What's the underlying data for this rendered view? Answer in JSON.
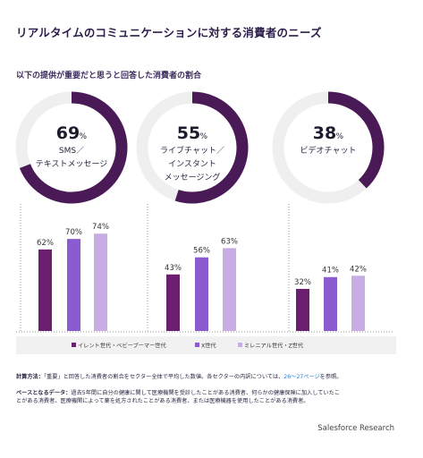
{
  "title": "リアルタイムのコミュニケーションに対する消費者のニーズ",
  "subtitle": "以下の提供が重要だと思うと回答した消費者の割合",
  "chart_data": [
    {
      "type": "pie",
      "title": "SMS／テキストメッセージ",
      "value": 69,
      "label_lines": [
        "SMS／",
        "テキストメッセージ"
      ],
      "value_text": "69",
      "unit": "%"
    },
    {
      "type": "pie",
      "title": "ライブチャット／インスタントメッセージング",
      "value": 55,
      "label_lines": [
        "ライブチャット／",
        "インスタント",
        "メッセージング"
      ],
      "value_text": "55",
      "unit": "%"
    },
    {
      "type": "pie",
      "title": "ビデオチャット",
      "value": 38,
      "label_lines": [
        "ビデオチャット"
      ],
      "value_text": "38",
      "unit": "%"
    },
    {
      "type": "bar",
      "categories": [
        "SMS／テキストメッセージ",
        "ライブチャット／インスタントメッセージング",
        "ビデオチャット"
      ],
      "series": [
        {
          "name": "イレント世代・ベビーブーマー世代",
          "values": [
            62,
            43,
            32
          ],
          "labels": [
            "62%",
            "43%",
            "32%"
          ],
          "color": "#6b1f6e"
        },
        {
          "name": "X世代",
          "values": [
            70,
            56,
            41
          ],
          "labels": [
            "70%",
            "56%",
            "41%"
          ],
          "color": "#8b5ccf"
        },
        {
          "name": "ミレニアル世代・Z世代",
          "values": [
            74,
            63,
            42
          ],
          "labels": [
            "74%",
            "63%",
            "42%"
          ],
          "color": "#c7ade3"
        }
      ],
      "ylim": [
        0,
        100
      ],
      "legend": "bottom"
    }
  ],
  "footer": {
    "method_label": "計算方法：",
    "method_text": "「重要」と回答した消費者の割合をセクター全体で平均した数値。各セクターの内訳については、",
    "method_link": "26～27ページ",
    "method_tail": "を参照。",
    "base_label": "ベースとなるデータ：",
    "base_text_1": "過去5年間に自分の健康に関して医療機関を受診したことがある消費者、何らかの健康保険に加入していたこ",
    "base_text_2": "とがある消費者、医療機関によって薬を処方されたことがある消費者、または医療機器を使用したことがある消費者。"
  },
  "brand": "Salesforce Research",
  "colors": {
    "ring_track": "#efefef",
    "ring_fill": "#4a1a57",
    "axis": "#222222",
    "dots": "#777777",
    "legend_bg": "#f1f1f1"
  }
}
